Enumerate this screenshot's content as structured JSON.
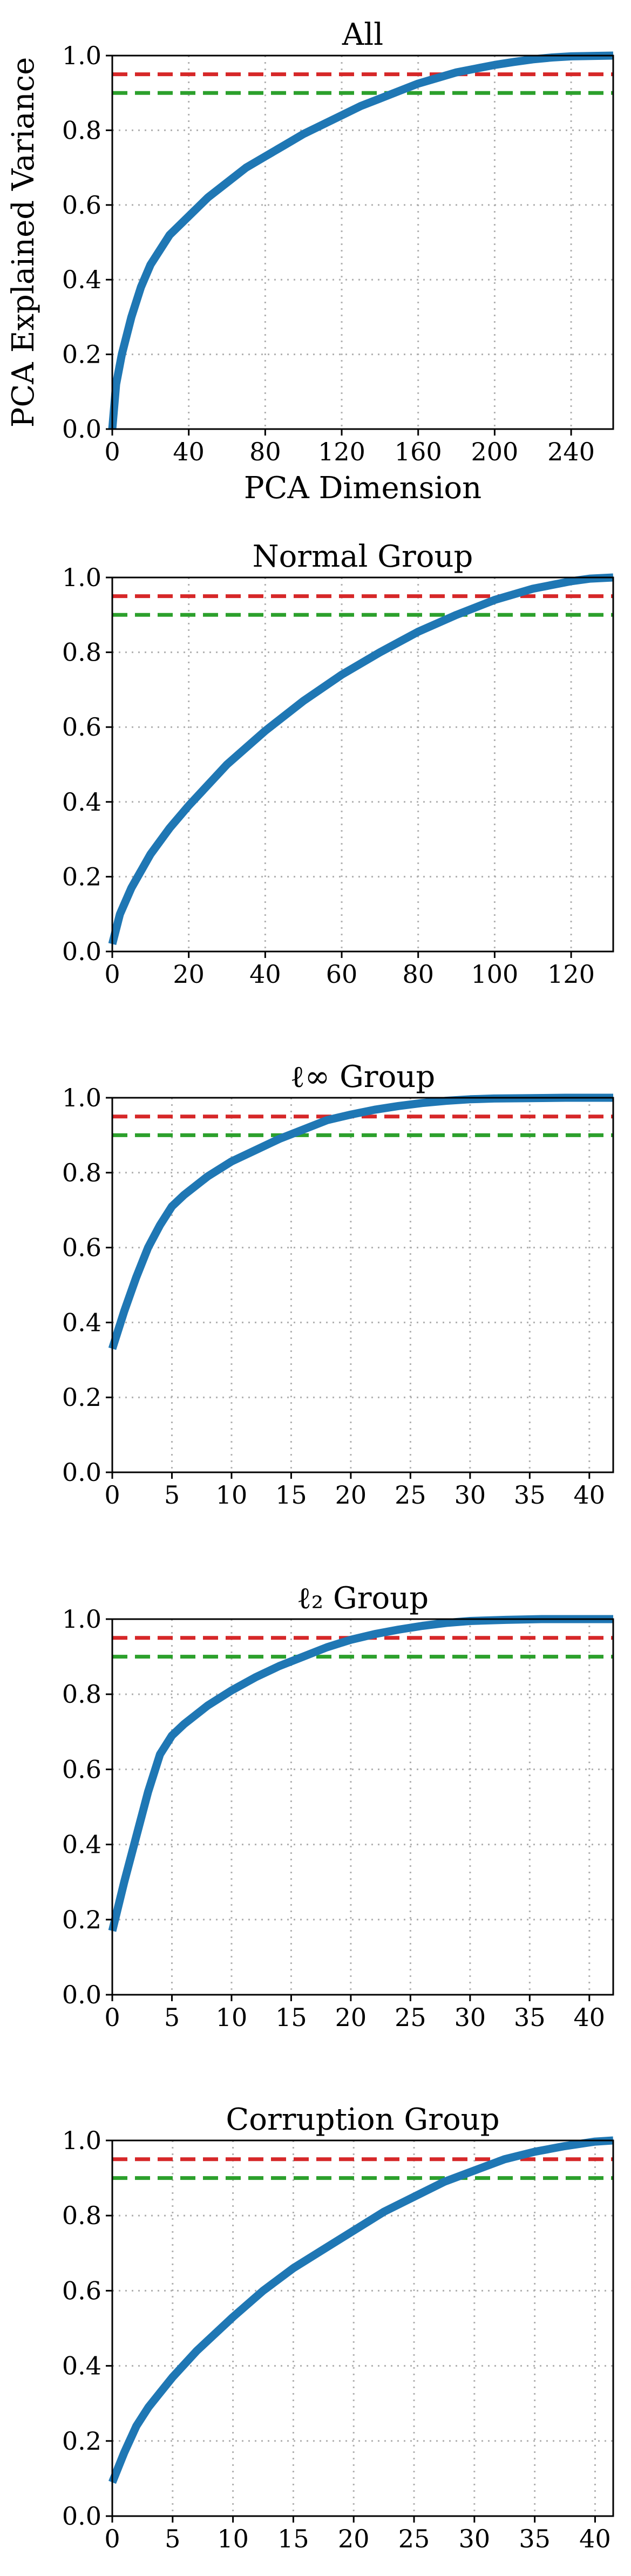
{
  "chart_data": [
    {
      "type": "line",
      "title": "All",
      "xlabel": "PCA Dimension",
      "ylabel": "PCA Explained Variance",
      "xlim": [
        0,
        262
      ],
      "ylim": [
        0,
        1.0
      ],
      "xticks": [
        0,
        40,
        80,
        120,
        160,
        200,
        240
      ],
      "xtick_labels": [
        "0",
        "40",
        "80",
        "120",
        "160",
        "200",
        "240"
      ],
      "yticks": [
        0,
        0.2,
        0.4,
        0.6,
        0.8,
        1.0
      ],
      "ytick_labels": [
        "0.0",
        "0.2",
        "0.4",
        "0.6",
        "0.8",
        "1.0"
      ],
      "grid": true,
      "reference_lines": [
        {
          "y": 0.95,
          "color": "#d62728",
          "style": "dashed"
        },
        {
          "y": 0.9,
          "color": "#2ca02c",
          "style": "dashed"
        }
      ],
      "series": [
        {
          "color": "#1f77b4",
          "x": [
            0,
            2,
            5,
            10,
            15,
            20,
            30,
            40,
            50,
            60,
            70,
            80,
            90,
            100,
            110,
            120,
            130,
            140,
            150,
            160,
            170,
            180,
            190,
            200,
            210,
            220,
            230,
            240,
            250,
            262
          ],
          "y": [
            0.0,
            0.12,
            0.2,
            0.3,
            0.38,
            0.44,
            0.52,
            0.57,
            0.62,
            0.66,
            0.7,
            0.73,
            0.76,
            0.79,
            0.815,
            0.84,
            0.865,
            0.885,
            0.905,
            0.925,
            0.94,
            0.955,
            0.965,
            0.975,
            0.983,
            0.99,
            0.995,
            0.998,
            0.999,
            1.0
          ]
        }
      ]
    },
    {
      "type": "line",
      "title": "Normal Group",
      "xlabel": "",
      "ylabel": "",
      "xlim": [
        0,
        131
      ],
      "ylim": [
        0,
        1.0
      ],
      "xticks": [
        0,
        20,
        40,
        60,
        80,
        100,
        120
      ],
      "xtick_labels": [
        "0",
        "20",
        "40",
        "60",
        "80",
        "100",
        "120"
      ],
      "yticks": [
        0,
        0.2,
        0.4,
        0.6,
        0.8,
        1.0
      ],
      "ytick_labels": [
        "0.0",
        "0.2",
        "0.4",
        "0.6",
        "0.8",
        "1.0"
      ],
      "grid": true,
      "reference_lines": [
        {
          "y": 0.95,
          "color": "#d62728",
          "style": "dashed"
        },
        {
          "y": 0.9,
          "color": "#2ca02c",
          "style": "dashed"
        }
      ],
      "series": [
        {
          "color": "#1f77b4",
          "x": [
            0,
            2,
            5,
            10,
            15,
            20,
            30,
            40,
            50,
            60,
            70,
            80,
            90,
            100,
            110,
            120,
            125,
            131
          ],
          "y": [
            0.02,
            0.1,
            0.17,
            0.26,
            0.33,
            0.39,
            0.5,
            0.59,
            0.67,
            0.74,
            0.8,
            0.855,
            0.9,
            0.94,
            0.97,
            0.99,
            0.997,
            1.0
          ]
        }
      ]
    },
    {
      "type": "line",
      "title": "ℓ∞ Group",
      "xlabel": "",
      "ylabel": "",
      "xlim": [
        0,
        42
      ],
      "ylim": [
        0,
        1.0
      ],
      "xticks": [
        0,
        5,
        10,
        15,
        20,
        25,
        30,
        35,
        40
      ],
      "xtick_labels": [
        "0",
        "5",
        "10",
        "15",
        "20",
        "25",
        "30",
        "35",
        "40"
      ],
      "yticks": [
        0,
        0.2,
        0.4,
        0.6,
        0.8,
        1.0
      ],
      "ytick_labels": [
        "0.0",
        "0.2",
        "0.4",
        "0.6",
        "0.8",
        "1.0"
      ],
      "grid": true,
      "reference_lines": [
        {
          "y": 0.95,
          "color": "#d62728",
          "style": "dashed"
        },
        {
          "y": 0.9,
          "color": "#2ca02c",
          "style": "dashed"
        }
      ],
      "series": [
        {
          "color": "#1f77b4",
          "x": [
            0,
            1,
            2,
            3,
            4,
            5,
            6,
            8,
            10,
            12,
            14,
            16,
            18,
            20,
            22,
            24,
            26,
            28,
            30,
            32,
            35,
            38,
            42
          ],
          "y": [
            0.33,
            0.43,
            0.52,
            0.6,
            0.66,
            0.71,
            0.74,
            0.79,
            0.83,
            0.86,
            0.89,
            0.915,
            0.94,
            0.955,
            0.968,
            0.978,
            0.986,
            0.992,
            0.996,
            0.998,
            0.999,
            1.0,
            1.0
          ]
        }
      ]
    },
    {
      "type": "line",
      "title": "ℓ₂ Group",
      "xlabel": "",
      "ylabel": "",
      "xlim": [
        0,
        42
      ],
      "ylim": [
        0,
        1.0
      ],
      "xticks": [
        0,
        5,
        10,
        15,
        20,
        25,
        30,
        35,
        40
      ],
      "xtick_labels": [
        "0",
        "5",
        "10",
        "15",
        "20",
        "25",
        "30",
        "35",
        "40"
      ],
      "yticks": [
        0,
        0.2,
        0.4,
        0.6,
        0.8,
        1.0
      ],
      "ytick_labels": [
        "0.0",
        "0.2",
        "0.4",
        "0.6",
        "0.8",
        "1.0"
      ],
      "grid": true,
      "reference_lines": [
        {
          "y": 0.95,
          "color": "#d62728",
          "style": "dashed"
        },
        {
          "y": 0.9,
          "color": "#2ca02c",
          "style": "dashed"
        }
      ],
      "series": [
        {
          "color": "#1f77b4",
          "x": [
            0,
            1,
            2,
            3,
            4,
            5,
            6,
            8,
            10,
            12,
            14,
            16,
            18,
            20,
            22,
            24,
            26,
            28,
            30,
            33,
            36,
            40,
            42
          ],
          "y": [
            0.17,
            0.3,
            0.42,
            0.54,
            0.64,
            0.69,
            0.72,
            0.77,
            0.81,
            0.845,
            0.875,
            0.9,
            0.925,
            0.945,
            0.96,
            0.972,
            0.982,
            0.99,
            0.995,
            0.998,
            1.0,
            1.0,
            1.0
          ]
        }
      ]
    },
    {
      "type": "line",
      "title": "Corruption Group",
      "xlabel": "",
      "ylabel": "",
      "xlim": [
        0,
        41.5
      ],
      "ylim": [
        0,
        1.0
      ],
      "xticks": [
        0,
        5,
        10,
        15,
        20,
        25,
        30,
        35,
        40
      ],
      "xtick_labels": [
        "0",
        "5",
        "10",
        "15",
        "20",
        "25",
        "30",
        "35",
        "40"
      ],
      "yticks": [
        0,
        0.2,
        0.4,
        0.6,
        0.8,
        1.0
      ],
      "ytick_labels": [
        "0.0",
        "0.2",
        "0.4",
        "0.6",
        "0.8",
        "1.0"
      ],
      "grid": true,
      "reference_lines": [
        {
          "y": 0.95,
          "color": "#d62728",
          "style": "dashed"
        },
        {
          "y": 0.9,
          "color": "#2ca02c",
          "style": "dashed"
        }
      ],
      "series": [
        {
          "color": "#1f77b4",
          "x": [
            0,
            1,
            2,
            3,
            4,
            5,
            7,
            10,
            12.5,
            15,
            17.5,
            20,
            22.5,
            25,
            27.5,
            30,
            32.5,
            35,
            37.5,
            40,
            41.5
          ],
          "y": [
            0.09,
            0.17,
            0.24,
            0.29,
            0.33,
            0.37,
            0.44,
            0.53,
            0.6,
            0.66,
            0.71,
            0.76,
            0.81,
            0.85,
            0.89,
            0.92,
            0.95,
            0.97,
            0.985,
            0.997,
            1.0
          ]
        }
      ]
    }
  ]
}
